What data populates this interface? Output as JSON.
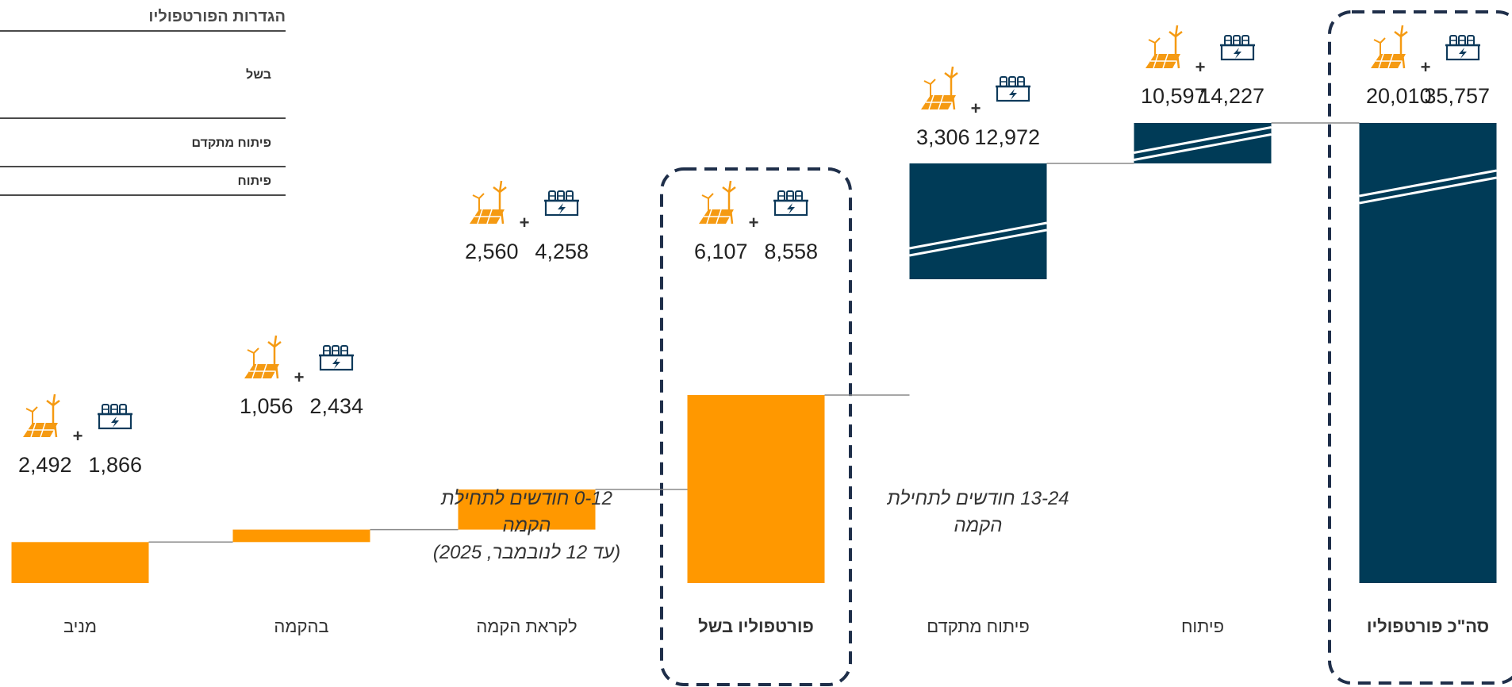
{
  "legend": {
    "title": "הגדרות הפורטפוליו",
    "items": [
      "בשל",
      "פיתוח מתקדם",
      "פיתוח"
    ]
  },
  "colors": {
    "orange": "#FF9800",
    "navy": "#003B57",
    "connector": "#8a8a8a",
    "dashed_box": "#1f2f4a",
    "icon_orange": "#F59A12",
    "icon_navy": "#0E3A5B"
  },
  "icons": {
    "renewable": "wind-solar-icon",
    "storage": "battery-storage-icon",
    "plus": "+"
  },
  "notes": {
    "n1": [
      "0-12 חודשים לתחילת",
      "הקמה",
      "(עד 12 לנובמבר, 2025)"
    ],
    "n2": [
      "13-24 חודשים לתחילת",
      "הקמה"
    ]
  },
  "chart_data": {
    "type": "bar",
    "subtype": "waterfall",
    "categories": [
      "מניב",
      "בהקמה",
      "לקראת הקמה",
      "פורטפוליו בשל",
      "פיתוח מתקדם",
      "פיתוח",
      "סה\"כ פורטפוליו"
    ],
    "bold_categories": [
      false,
      false,
      false,
      true,
      false,
      false,
      true
    ],
    "renewable_values": [
      2492,
      1056,
      2560,
      6107,
      3306,
      10597,
      20010
    ],
    "storage_values": [
      1866,
      2434,
      4258,
      8558,
      12972,
      14227,
      35757
    ],
    "renewable_labels": [
      "2,492",
      "1,056",
      "2,560",
      "6,107",
      "3,306",
      "10,597",
      "20,010"
    ],
    "storage_labels": [
      "1,866",
      "2,434",
      "4,258",
      "8,558",
      "12,972",
      "14,227",
      "35,757"
    ],
    "bar_kind": [
      "step",
      "step",
      "step",
      "total",
      "step",
      "step",
      "total"
    ],
    "bar_color": [
      "orange",
      "orange",
      "orange",
      "orange",
      "navy",
      "navy",
      "navy"
    ],
    "axis_break": [
      false,
      false,
      false,
      false,
      true,
      true,
      true
    ],
    "highlighted": [
      false,
      false,
      false,
      true,
      false,
      false,
      true
    ],
    "ylim": [
      0,
      14000
    ]
  }
}
